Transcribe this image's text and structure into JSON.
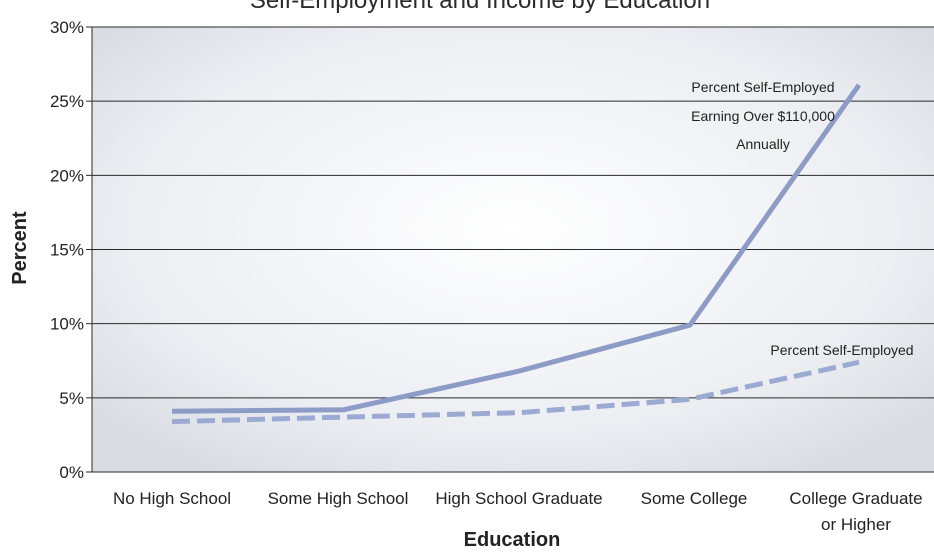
{
  "chart_data": {
    "type": "line",
    "title": "Self-Employment and Income by Education",
    "xlabel": "Education",
    "ylabel": "Percent",
    "ylim": [
      0,
      30
    ],
    "yticks": [
      "0%",
      "5%",
      "10%",
      "15%",
      "20%",
      "25%",
      "30%"
    ],
    "categories": [
      [
        "No High School"
      ],
      [
        "Some High School"
      ],
      [
        "High School Graduate"
      ],
      [
        "Some College"
      ],
      [
        "College Graduate",
        "or Higher"
      ]
    ],
    "grid": true,
    "series": [
      {
        "name": "Percent Self-Employed Earning Over $110,000 Annually",
        "annotation_lines": [
          "Percent Self-Employed",
          "Earning Over $110,000",
          "Annually"
        ],
        "style": "solid",
        "color": "#8c9cc7",
        "values": [
          4.1,
          4.2,
          6.8,
          9.9,
          26.1
        ]
      },
      {
        "name": "Percent Self-Employed",
        "annotation_lines": [
          "Percent Self-Employed"
        ],
        "style": "dashed",
        "color": "#9aaad2",
        "values": [
          3.4,
          3.7,
          4.0,
          4.9,
          7.4
        ]
      }
    ]
  }
}
